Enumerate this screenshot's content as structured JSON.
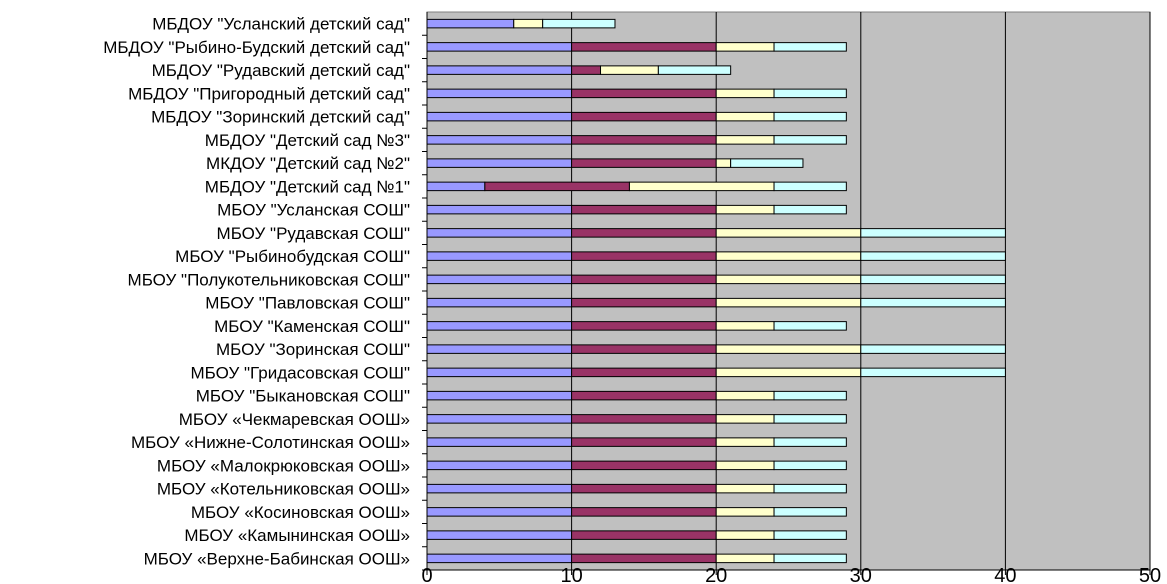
{
  "chart_data": {
    "type": "bar",
    "orientation": "horizontal",
    "stacked": true,
    "xlim": [
      0,
      50
    ],
    "x_ticks": [
      "0",
      "10",
      "20",
      "30",
      "40",
      "50"
    ],
    "grid": true,
    "plot_background": "#c0c0c0",
    "categories": [
      "МБДОУ \"Усланский детский сад\"",
      "МБДОУ \"Рыбино-Будский детский сад\"",
      "МБДОУ \"Рудавский детский сад\"",
      "МБДОУ \"Пригородный детский сад\"",
      "МБДОУ \"Зоринский детский сад\"",
      "МБДОУ \"Детский сад №3\"",
      "МКДОУ \"Детский сад №2\"",
      "МБДОУ \"Детский сад №1\"",
      "МБОУ \"Усланская СОШ\"",
      "МБОУ \"Рудавская СОШ\"",
      "МБОУ \"Рыбинобудская СОШ\"",
      "МБОУ \"Полукотельниковская СОШ\"",
      "МБОУ \"Павловская СОШ\"",
      "МБОУ \"Каменская СОШ\"",
      "МБОУ \"Зоринская СОШ\"",
      "МБОУ \"Гридасовская СОШ\"",
      "МБОУ \"Быкановская СОШ\"",
      "МБОУ «Чекмаревская ООШ»",
      "МБОУ «Нижне-Солотинская ООШ»",
      "МБОУ «Малокрюковская ООШ»",
      "МБОУ «Котельниковская ООШ»",
      "МБОУ «Косиновская ООШ»",
      "МБОУ «Камынинская ООШ»",
      "МБОУ «Верхне-Бабинская ООШ»"
    ],
    "series": [
      {
        "color": "#9999ff",
        "values": [
          6,
          10,
          10,
          10,
          10,
          10,
          10,
          4,
          10,
          10,
          10,
          10,
          10,
          10,
          10,
          10,
          10,
          10,
          10,
          10,
          10,
          10,
          10,
          10
        ]
      },
      {
        "color": "#993366",
        "values": [
          0,
          10,
          2,
          10,
          10,
          10,
          10,
          10,
          10,
          10,
          10,
          10,
          10,
          10,
          10,
          10,
          10,
          10,
          10,
          10,
          10,
          10,
          10,
          10
        ]
      },
      {
        "color": "#ffffcc",
        "values": [
          2,
          4,
          4,
          4,
          4,
          4,
          1,
          10,
          4,
          10,
          10,
          10,
          10,
          4,
          10,
          10,
          4,
          4,
          4,
          4,
          4,
          4,
          4,
          4
        ]
      },
      {
        "color": "#ccffff",
        "values": [
          5,
          5,
          5,
          5,
          5,
          5,
          5,
          5,
          5,
          10,
          10,
          10,
          10,
          5,
          10,
          10,
          5,
          5,
          5,
          5,
          5,
          5,
          5,
          5
        ]
      }
    ]
  }
}
